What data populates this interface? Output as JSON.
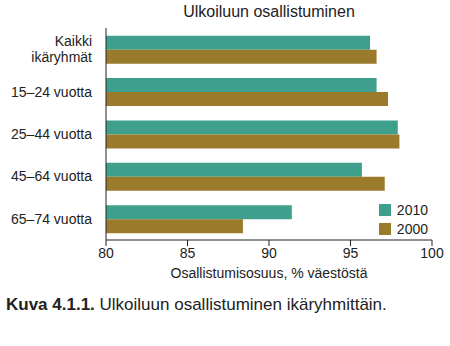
{
  "chart_data": {
    "type": "bar",
    "orientation": "horizontal",
    "title": "Ulkoiluun osallistuminen",
    "xlabel": "Osallistumisosuus, % väestöstä",
    "caption_number": "Kuva 4.1.1.",
    "caption": "Ulkoiluun osallistuminen ikäryhmittäin.",
    "categories": [
      "Kaikki ikäryhmät",
      "15–24 vuotta",
      "25–44 vuotta",
      "45–64 vuotta",
      "65–74 vuotta"
    ],
    "series": [
      {
        "name": "2010",
        "color": "#3e9f8c",
        "values": [
          96.2,
          96.6,
          97.9,
          95.7,
          91.4
        ]
      },
      {
        "name": "2000",
        "color": "#9a7b2c",
        "values": [
          96.6,
          97.3,
          98.0,
          97.1,
          88.4
        ]
      }
    ],
    "xlim": [
      80,
      100
    ],
    "xticks": [
      80,
      85,
      90,
      95,
      100
    ],
    "grid": false,
    "legend": "lower right"
  }
}
